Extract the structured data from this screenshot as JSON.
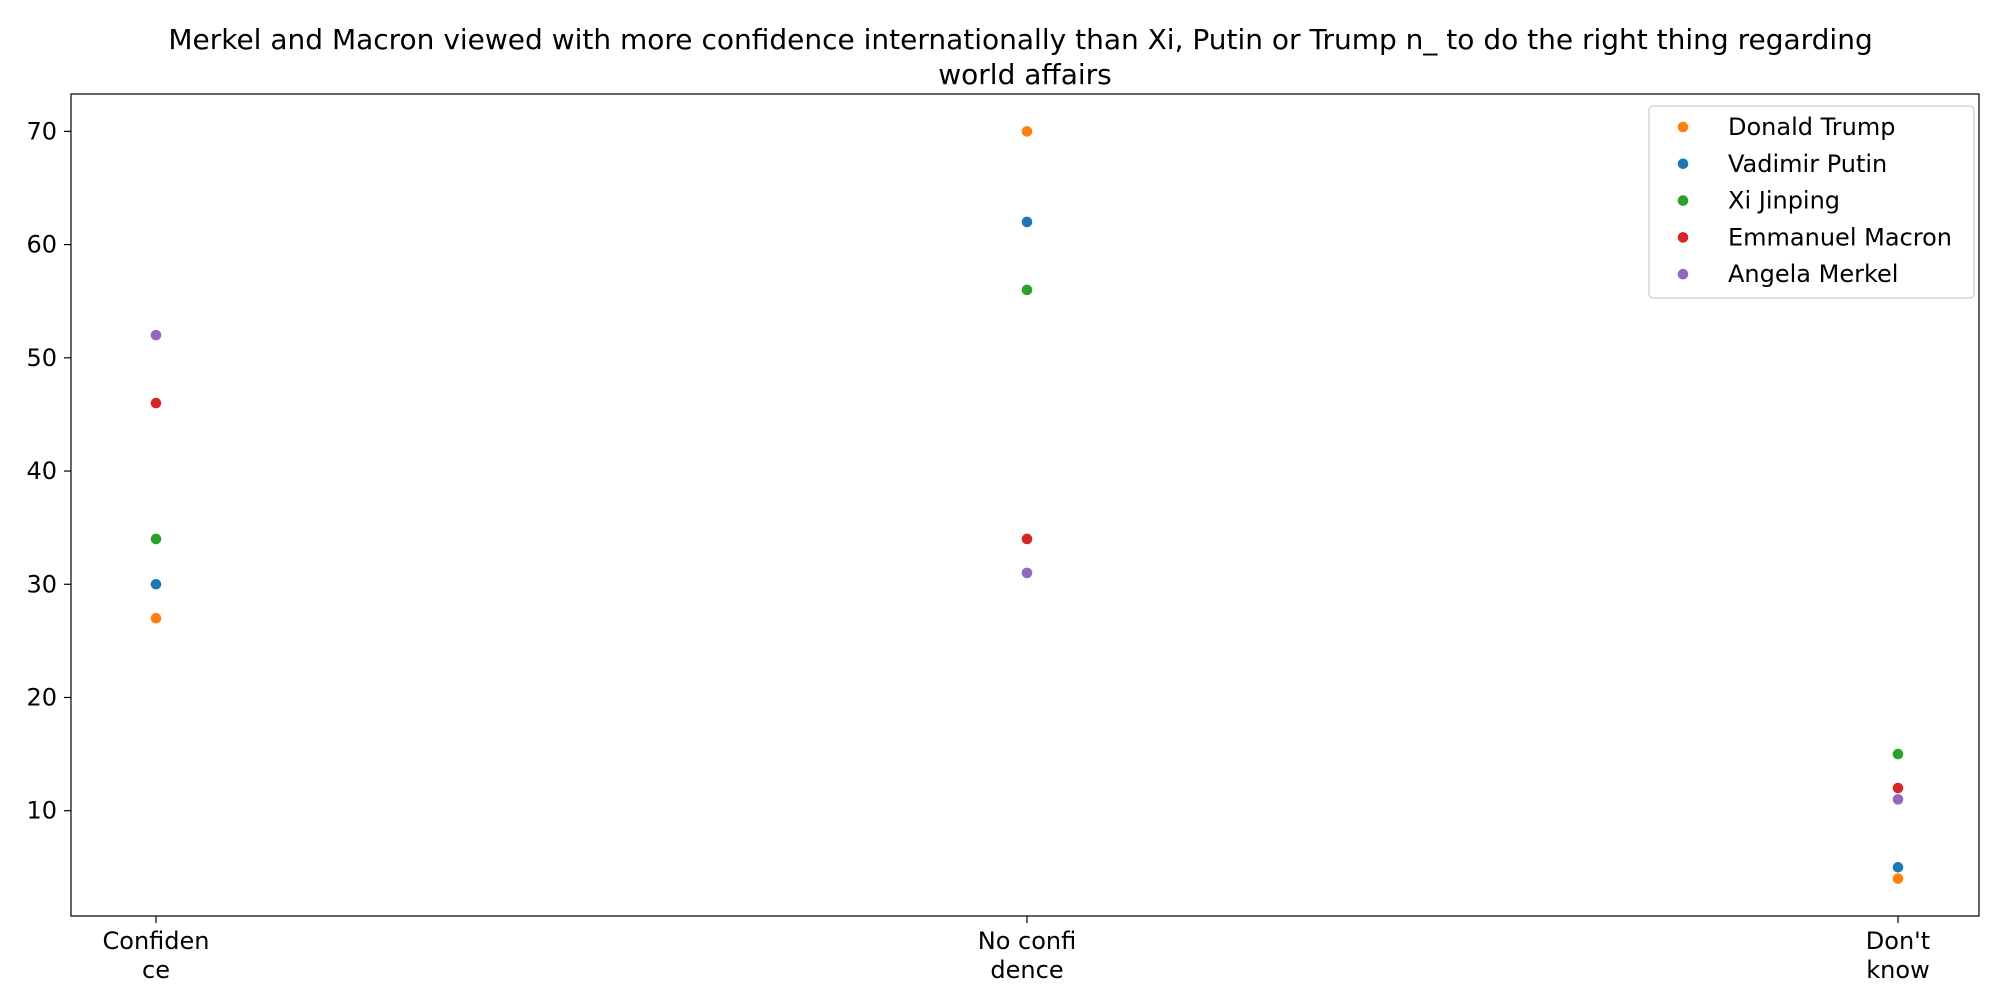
{
  "chart_data": {
    "type": "scatter",
    "title": "Merkel and Macron viewed with more confidence internationally than Xi, Putin or Trump n_ to do the right thing regarding world affairs",
    "title_lines": [
      "Merkel and Macron viewed with more confidence internationally than Xi, Putin or Trump n_ to do the right thing regarding",
      "world affairs"
    ],
    "categories": [
      "Confidence",
      "No confidence",
      "Don't know"
    ],
    "category_tick_labels": [
      [
        "Confiden",
        "ce"
      ],
      [
        "No confi",
        "dence"
      ],
      [
        "Don't",
        "know"
      ]
    ],
    "xlabel": "",
    "ylabel": "",
    "ylim": [
      0.7,
      73.3
    ],
    "yticks": [
      10,
      20,
      30,
      40,
      50,
      60,
      70
    ],
    "grid": false,
    "legend_position": "top-right",
    "series": [
      {
        "name": "Donald Trump",
        "color": "#ff7f0e",
        "values": [
          27,
          70,
          4
        ]
      },
      {
        "name": "Vadimir Putin",
        "color": "#1f77b4",
        "values": [
          30,
          62,
          5
        ]
      },
      {
        "name": "Xi Jinping",
        "color": "#2ca02c",
        "values": [
          34,
          56,
          15
        ]
      },
      {
        "name": "Emmanuel Macron",
        "color": "#d62728",
        "values": [
          46,
          34,
          12
        ]
      },
      {
        "name": "Angela Merkel",
        "color": "#9467bd",
        "values": [
          52,
          31,
          11
        ]
      }
    ]
  }
}
